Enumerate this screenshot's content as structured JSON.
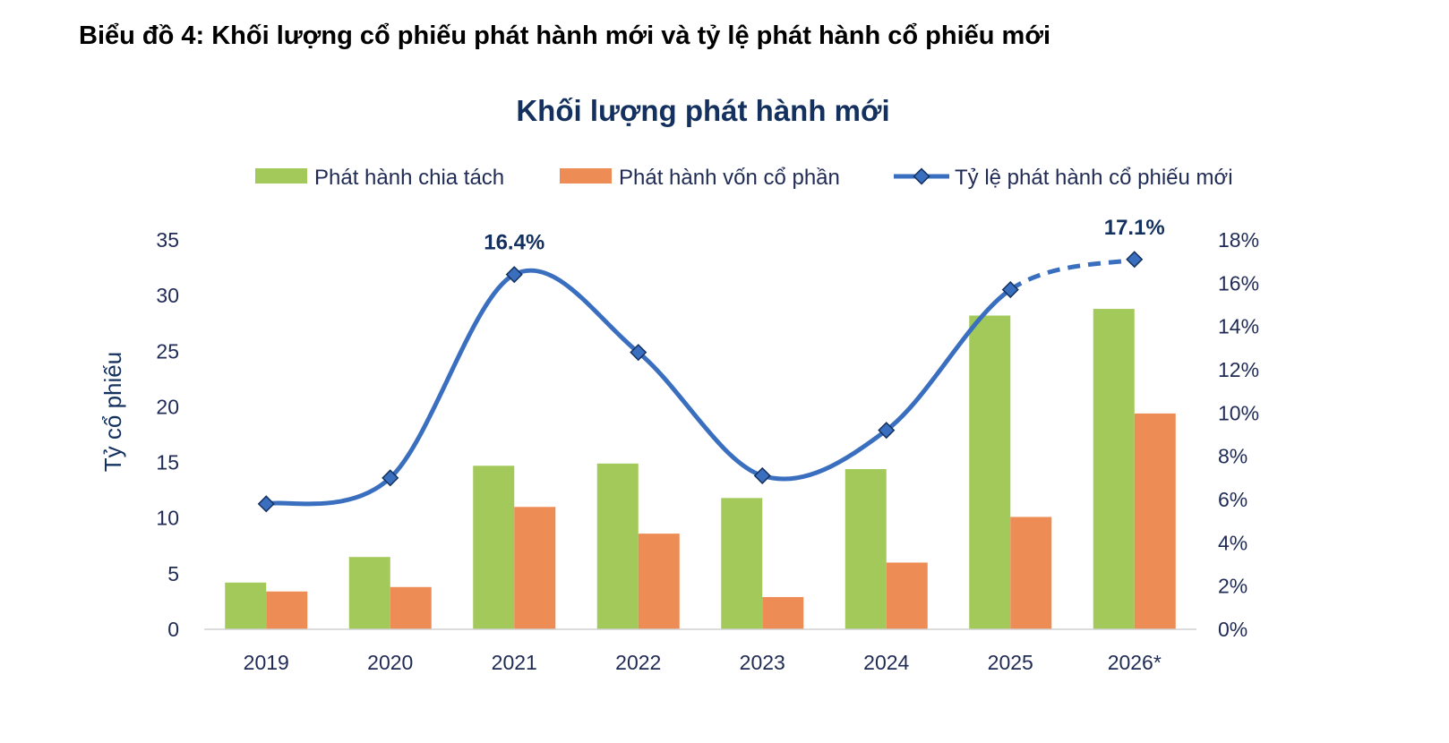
{
  "page": {
    "title": "Biểu đồ 4: Khối lượng cổ phiếu phát hành mới và tỷ lệ phát hành cổ phiếu mới"
  },
  "chart_data": {
    "type": "bar",
    "title": "Khối lượng phát hành mới",
    "xlabel": "",
    "ylabel": "Tỷ cổ phiếu",
    "categories": [
      "2019",
      "2020",
      "2021",
      "2022",
      "2023",
      "2024",
      "2025",
      "2026*"
    ],
    "ylim": [
      0,
      35
    ],
    "yticks": [
      "0",
      "5",
      "10",
      "15",
      "20",
      "25",
      "30",
      "35"
    ],
    "y2lim": [
      0,
      18
    ],
    "y2ticks": [
      "0%",
      "2%",
      "4%",
      "6%",
      "8%",
      "10%",
      "12%",
      "14%",
      "16%",
      "18%"
    ],
    "legend_position": "top",
    "grid": false,
    "series": [
      {
        "name": "Phát hành chia tách",
        "type": "bar",
        "color": "#a3c95a",
        "values": [
          4.2,
          6.5,
          14.7,
          14.9,
          11.8,
          14.4,
          28.2,
          28.8
        ]
      },
      {
        "name": "Phát hành vốn cổ phần",
        "type": "bar",
        "color": "#ee8c55",
        "values": [
          3.4,
          3.8,
          11.0,
          8.6,
          2.9,
          6.0,
          10.1,
          19.4
        ]
      },
      {
        "name": "Tỷ lệ phát hành cổ phiếu mới",
        "type": "line",
        "axis": "secondary",
        "color": "#3a6fbf",
        "values": [
          5.8,
          7.0,
          16.4,
          12.8,
          7.1,
          9.2,
          15.7,
          17.1
        ],
        "dashed_from_index": 6
      }
    ],
    "annotations": [
      {
        "text": "16.4%",
        "category": "2021"
      },
      {
        "text": "17.1%",
        "category": "2026*"
      }
    ]
  }
}
